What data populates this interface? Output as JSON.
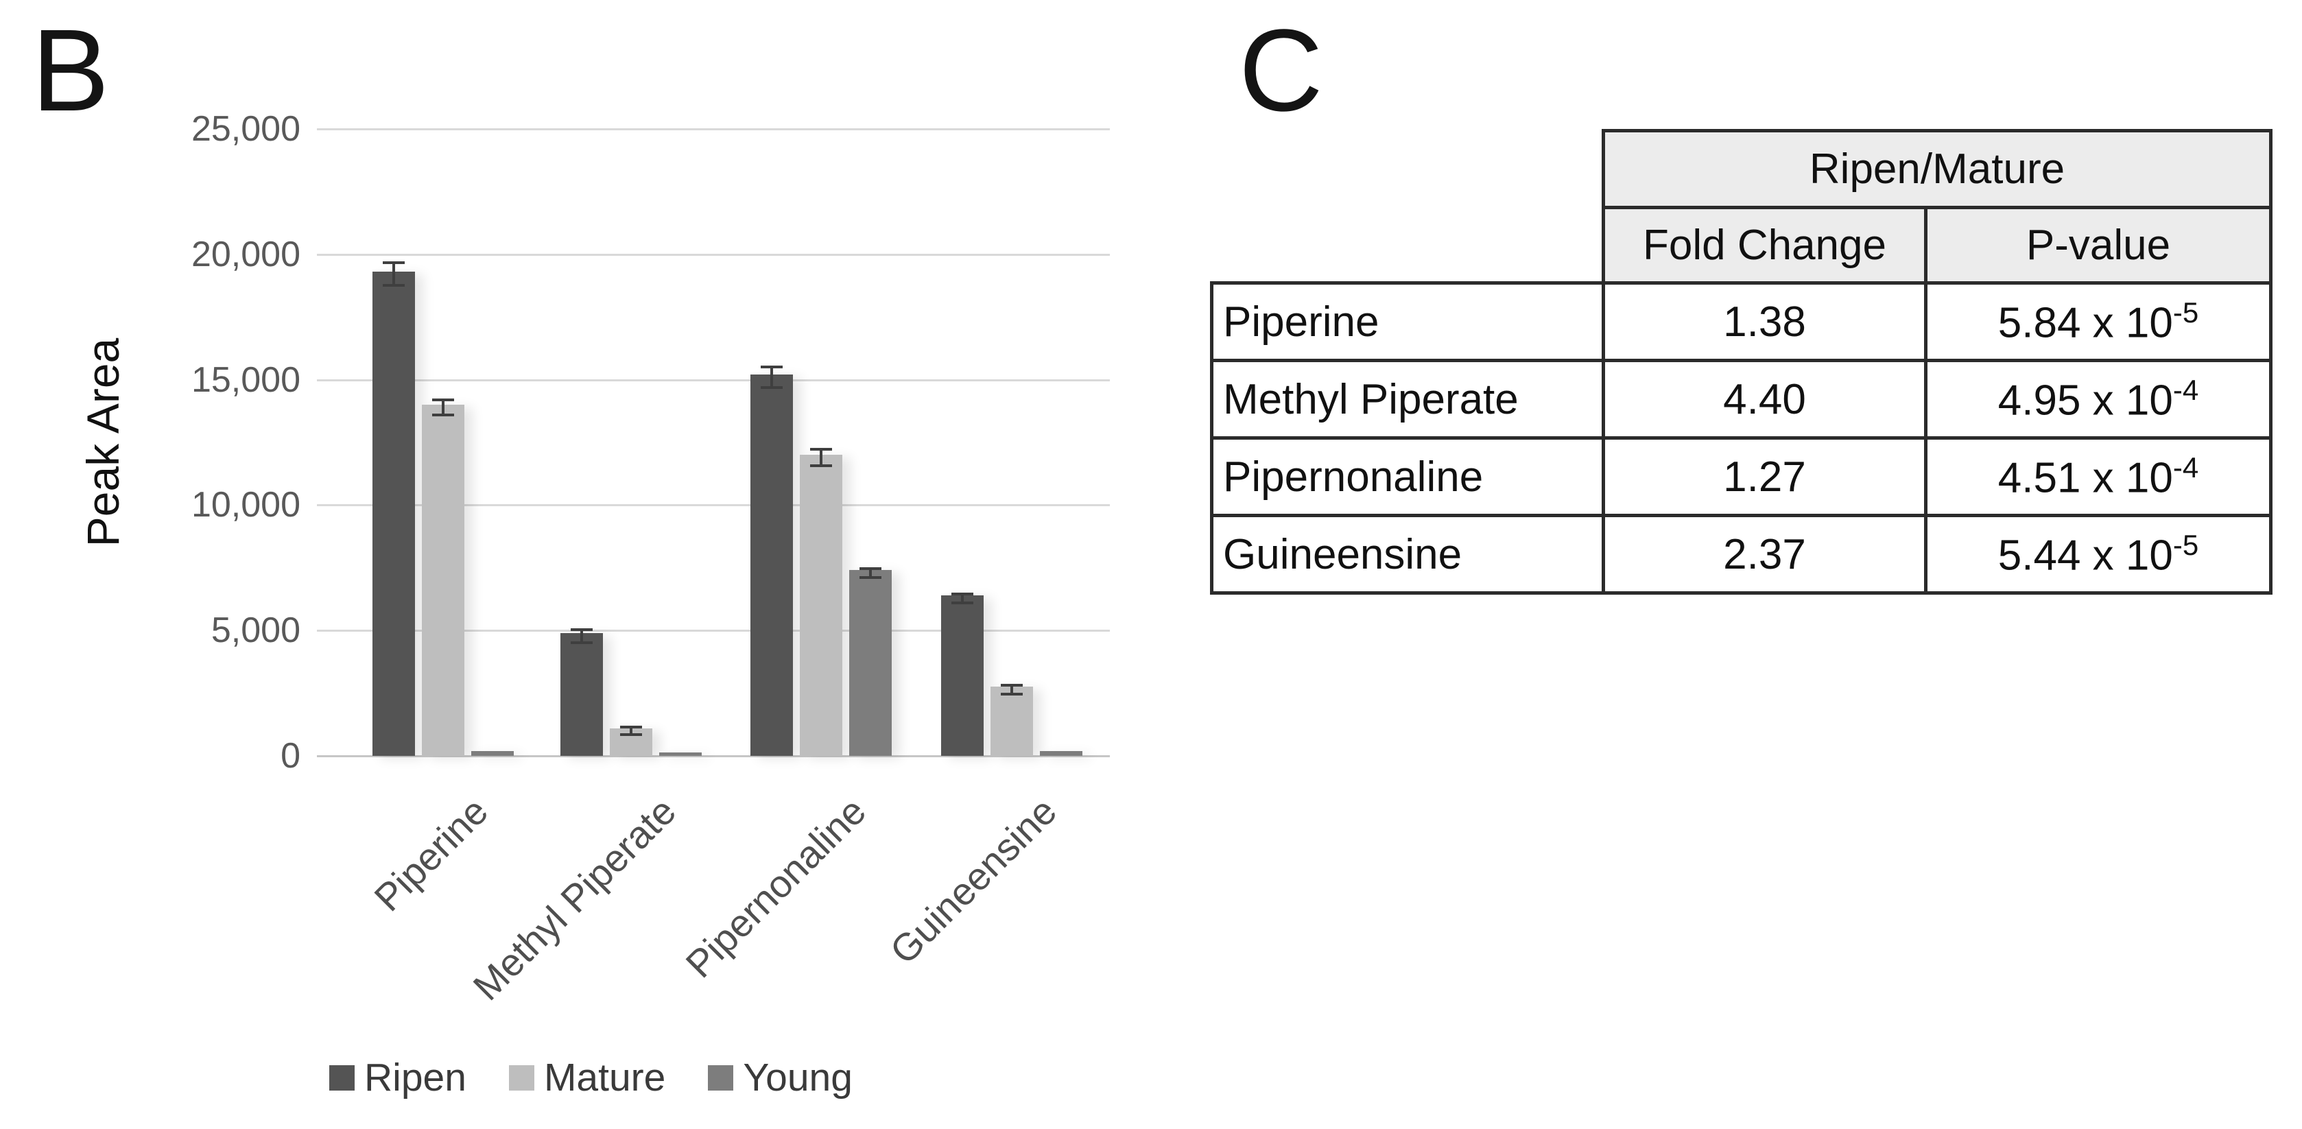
{
  "panel_b_label": "B",
  "panel_c_label": "C",
  "chart_data": [
    {
      "type": "bar",
      "panel": "B",
      "title": "",
      "xlabel": "",
      "ylabel": "Peak Area",
      "ylim": [
        0,
        25000
      ],
      "ytick_step": 5000,
      "ytick_labels": [
        "25,000",
        "20,000",
        "15,000",
        "10,000",
        "5,000",
        "0"
      ],
      "grid": true,
      "legend_position": "bottom",
      "categories": [
        "Piperine",
        "Methyl Piperate",
        "Pipernonaline",
        "Guineensine"
      ],
      "series": [
        {
          "name": "Ripen",
          "color": "#545454",
          "values": [
            19300,
            4900,
            15200,
            6400
          ],
          "errors": [
            400,
            200,
            350,
            120
          ]
        },
        {
          "name": "Mature",
          "color": "#bebebe",
          "values": [
            14000,
            1100,
            12000,
            2750
          ],
          "errors": [
            250,
            100,
            280,
            120
          ]
        },
        {
          "name": "Young",
          "color": "#7d7d7d",
          "values": [
            200,
            150,
            7400,
            200
          ],
          "errors": [
            0,
            0,
            120,
            0
          ]
        }
      ]
    },
    {
      "type": "table",
      "panel": "C",
      "group_header": "Ripen/Mature",
      "columns": [
        "Fold Change",
        "P-value"
      ],
      "rows": [
        {
          "name": "Piperine",
          "fold_change": "1.38",
          "p_value_base": "5.84 x 10",
          "p_value_exponent": "-5"
        },
        {
          "name": "Methyl Piperate",
          "fold_change": "4.40",
          "p_value_base": "4.95 x 10",
          "p_value_exponent": "-4"
        },
        {
          "name": "Pipernonaline",
          "fold_change": "1.27",
          "p_value_base": "4.51 x 10",
          "p_value_exponent": "-4"
        },
        {
          "name": "Guineensine",
          "fold_change": "2.37",
          "p_value_base": "5.44 x 10",
          "p_value_exponent": "-5"
        }
      ]
    }
  ],
  "colors": {
    "gridline": "#d9d9d9",
    "axis_line": "#c6c6c6",
    "error_bar": "#3f3f3f",
    "tick_text": "#595959",
    "table_border": "#2b2b2b",
    "table_header_bg": "#ececec",
    "background": "#ffffff"
  }
}
